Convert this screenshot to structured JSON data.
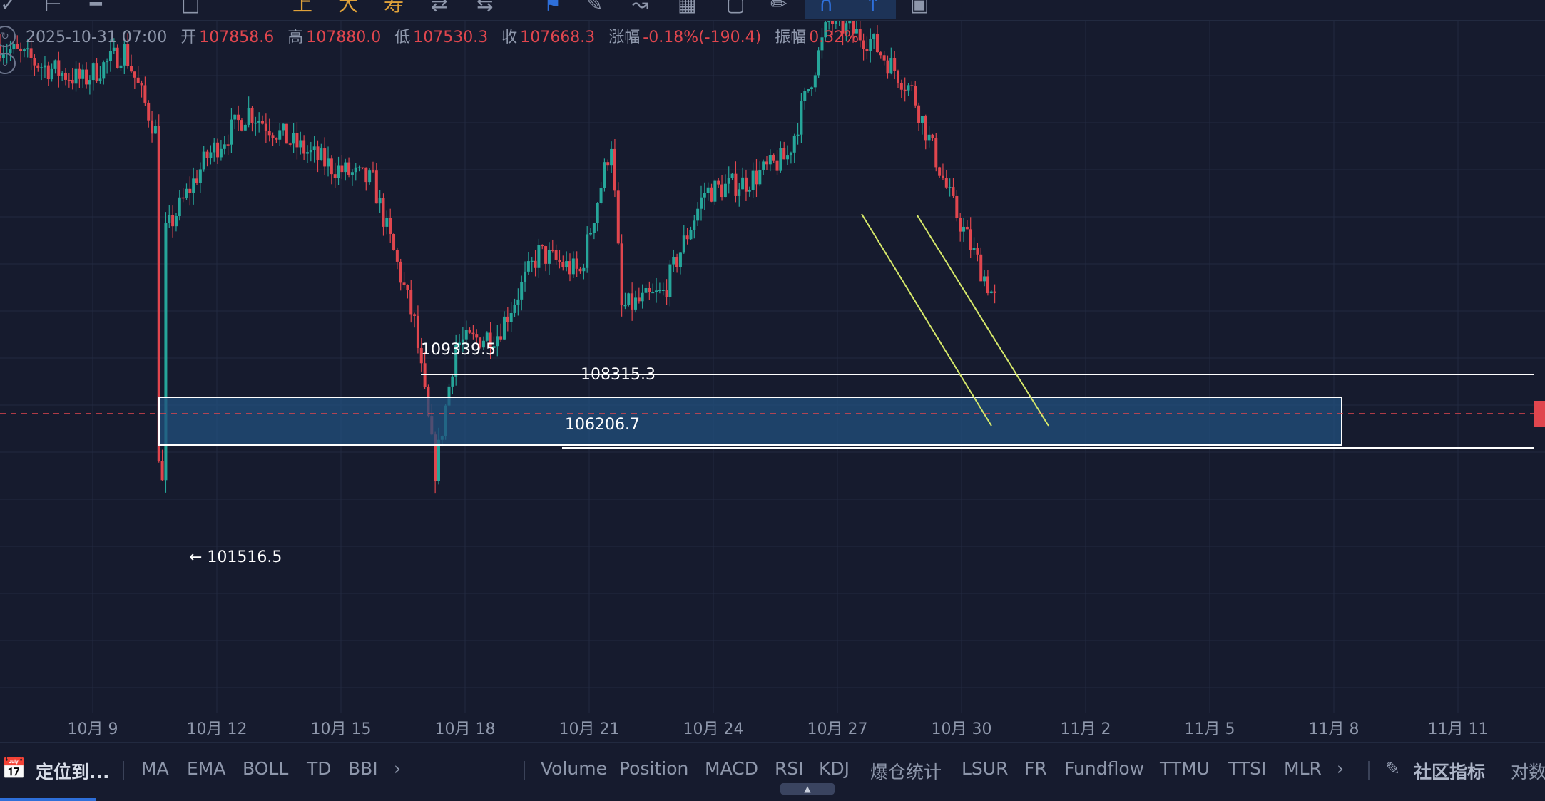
{
  "colors": {
    "background": "#161b2e",
    "grid": "#222a40",
    "up": "#26a69a",
    "down": "#e0464e",
    "zone_fill": "#21507e",
    "trend": "#d6e86a",
    "accent": "#2e6fd9"
  },
  "toolbar": {
    "icons": [
      "check-icon",
      "crosshair-icon",
      "horizontal-line-icon",
      "rectangle-icon",
      "text-icon",
      "text-icon",
      "text-icon",
      "arrows-icon",
      "arrows-icon",
      "bookmark-icon",
      "pencil-icon",
      "measure-icon",
      "candles-icon",
      "export-icon",
      "edit-icon",
      "magnet-icon",
      "pin-icon",
      "trash-icon"
    ],
    "glyph_1": "上",
    "glyph_2": "大",
    "glyph_3": "寿"
  },
  "ohlc": {
    "time": "2025-10-31 07:00",
    "open_label": "开",
    "open": "107858.6",
    "high_label": "高",
    "high": "107880.0",
    "low_label": "低",
    "low": "107530.3",
    "close_label": "收",
    "close": "107668.3",
    "change_label": "涨幅",
    "change": "-0.18%(-190.4)",
    "amplitude_label": "振幅",
    "amplitude": "0.32%"
  },
  "price_levels": {
    "level_high": "109339.5",
    "level_mid": "108315.3",
    "level_low": "106206.7",
    "low_marker": "← 101516.5"
  },
  "x_axis": {
    "ticks": [
      "10月 9",
      "10月 12",
      "10月 15",
      "10月 18",
      "10月 21",
      "10月 24",
      "10月 27",
      "10月 30",
      "11月 2",
      "11月 5",
      "11月 8",
      "11月 11"
    ]
  },
  "bottom_bar": {
    "locate_label": "定位到...",
    "main_indicators": [
      "MA",
      "EMA",
      "BOLL",
      "TD",
      "BBI"
    ],
    "sub_indicators": [
      "Volume",
      "Position",
      "MACD",
      "RSI",
      "KDJ",
      "爆仓统计",
      "LSUR",
      "FR",
      "Fundflow",
      "TTMU",
      "TTSI",
      "MLR"
    ],
    "community_label": "社区指标",
    "log_label": "对数"
  },
  "chart_data": {
    "type": "candlestick",
    "y_range": [
      99500,
      113200
    ],
    "x_range_days": [
      "2025-10-07",
      "2025-11-13"
    ],
    "price_series_approx": [
      [
        "10-07",
        112700
      ],
      [
        "10-08",
        112300
      ],
      [
        "10-09",
        112000
      ],
      [
        "10-10",
        112600
      ],
      [
        "10-10 18:00",
        111000
      ],
      [
        "10-10 21:00",
        101516.5
      ],
      [
        "10-11",
        109000
      ],
      [
        "10-12",
        110500
      ],
      [
        "10-13",
        111400
      ],
      [
        "10-14",
        110800
      ],
      [
        "10-15",
        110300
      ],
      [
        "10-16",
        110000
      ],
      [
        "10-17",
        107200
      ],
      [
        "10-17 12:00",
        104300
      ],
      [
        "10-18",
        106800
      ],
      [
        "10-19",
        107000
      ],
      [
        "10-20",
        108600
      ],
      [
        "10-21",
        108200
      ],
      [
        "10-21 18:00",
        110800
      ],
      [
        "10-22",
        107500
      ],
      [
        "10-23",
        107800
      ],
      [
        "10-24",
        109800
      ],
      [
        "10-25",
        110000
      ],
      [
        "10-26",
        110500
      ],
      [
        "10-27",
        113200
      ],
      [
        "10-28",
        112800
      ],
      [
        "10-29",
        111800
      ],
      [
        "10-30",
        109500
      ],
      [
        "10-31",
        107668.3
      ]
    ],
    "horizontal_levels": [
      109339.5,
      108315.3,
      106206.7
    ],
    "current_price": 107668.3,
    "zone": [
      107400,
      106300
    ]
  }
}
